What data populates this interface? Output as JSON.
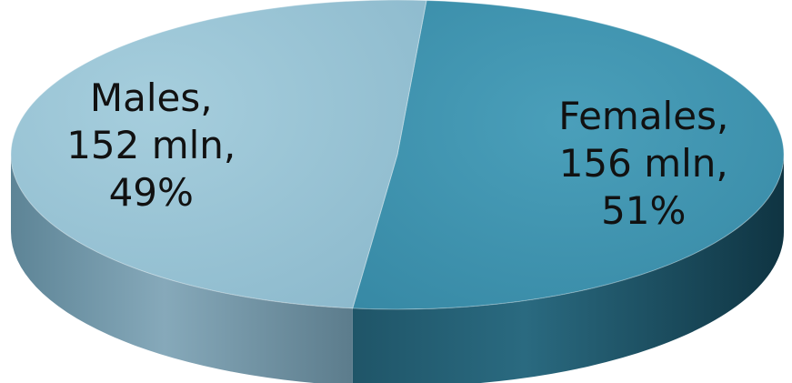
{
  "chart_data": {
    "type": "pie",
    "style": "3d",
    "title": "",
    "slices": [
      {
        "name": "Females",
        "value": 156,
        "percent": 51,
        "label_lines": [
          "Females,",
          "156 mln,",
          "51%"
        ],
        "color": "#3D93AE"
      },
      {
        "name": "Males",
        "value": 152,
        "percent": 49,
        "label_lines": [
          "Males,",
          "152 mln,",
          "49%"
        ],
        "color": "#93C1D4"
      }
    ]
  }
}
